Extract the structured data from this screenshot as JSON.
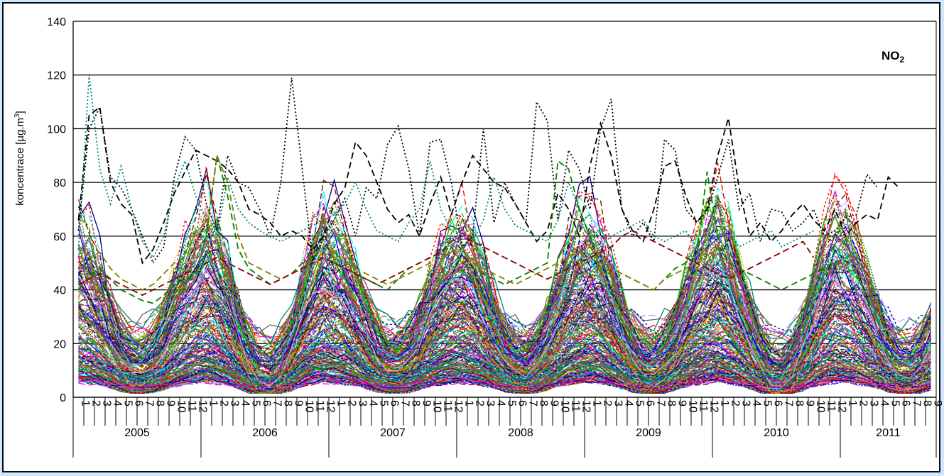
{
  "chart_data": {
    "type": "line",
    "title": "",
    "pollutant_label": "NO",
    "pollutant_sub": "2",
    "ylabel": "koncentrace [µg.m",
    "ylabel_sup": "3",
    "ylabel_end": "]",
    "xlabel": "",
    "ylim": [
      0,
      140
    ],
    "y_ticks": [
      0,
      20,
      40,
      60,
      80,
      100,
      120,
      140
    ],
    "grid": "horizontal",
    "legend": "none",
    "months": [
      "1",
      "2",
      "3",
      "4",
      "5",
      "6",
      "7",
      "8",
      "9",
      "10",
      "11",
      "12"
    ],
    "years": [
      {
        "label": "2005",
        "months": 12
      },
      {
        "label": "2006",
        "months": 12
      },
      {
        "label": "2007",
        "months": 12
      },
      {
        "label": "2008",
        "months": 12
      },
      {
        "label": "2009",
        "months": 12
      },
      {
        "label": "2010",
        "months": 12
      },
      {
        "label": "2011",
        "months": 9
      }
    ],
    "palette": [
      "#000080",
      "#ff00ff",
      "#00ffff",
      "#800000",
      "#008000",
      "#0000ff",
      "#ff0000",
      "#808000",
      "#008080",
      "#ff9900",
      "#993366",
      "#00cc00",
      "#cc99ff",
      "#333399",
      "#996633",
      "#666666"
    ],
    "series_count": 300,
    "highlight_series": [
      {
        "color": "#000000",
        "dash": "dotted",
        "values": [
          62,
          100,
          108,
          82,
          78,
          70,
          60,
          50,
          56,
          82,
          97,
          92,
          72,
          62,
          90,
          80,
          78,
          70,
          60,
          80,
          119,
          85,
          50,
          60,
          66,
          74,
          60,
          78,
          74,
          94,
          101,
          85,
          60,
          95,
          96,
          80,
          56,
          60,
          100,
          65,
          80,
          72,
          65,
          110,
          103,
          66,
          92,
          85,
          70,
          100,
          111,
          70,
          60,
          65,
          58,
          96,
          92,
          70,
          65,
          69,
          82,
          96,
          70,
          76,
          58,
          70,
          69,
          62,
          65,
          70,
          60,
          62,
          67,
          68,
          83,
          78
        ]
      },
      {
        "color": "#000000",
        "dash": "dashed",
        "values": [
          66,
          105,
          108,
          80,
          72,
          68,
          50,
          55,
          65,
          76,
          84,
          92,
          90,
          88,
          85,
          80,
          70,
          68,
          65,
          60,
          62,
          60,
          55,
          60,
          72,
          78,
          95,
          90,
          80,
          70,
          65,
          68,
          60,
          72,
          82,
          68,
          80,
          90,
          85,
          80,
          78,
          72,
          65,
          58,
          62,
          76,
          70,
          60,
          86,
          102,
          90,
          70,
          62,
          58,
          70,
          86,
          88,
          75,
          65,
          70,
          90,
          104,
          78,
          60,
          65,
          58,
          62,
          68,
          72,
          66,
          62,
          70,
          60,
          65,
          68,
          66,
          82,
          78
        ]
      },
      {
        "color": "#008080",
        "dash": "dotted",
        "values": [
          55,
          120,
          85,
          72,
          86,
          70,
          58,
          52,
          60,
          78,
          88,
          75,
          66,
          60,
          82,
          70,
          65,
          62,
          60,
          58,
          60,
          62,
          64,
          66,
          68,
          72,
          80,
          70,
          62,
          60,
          58,
          65,
          70,
          88,
          70,
          62,
          60,
          58,
          66,
          82,
          70,
          64,
          62,
          60,
          58,
          66,
          80,
          70,
          60,
          56,
          60,
          62,
          64,
          66,
          60,
          58,
          60,
          62,
          56,
          58,
          60,
          62,
          56,
          58,
          60,
          62,
          56,
          58,
          60,
          62
        ]
      },
      {
        "color": "#008000",
        "dash": "dashed",
        "values": [
          40,
          45,
          48,
          44,
          40,
          38,
          36,
          35,
          38,
          42,
          44,
          46,
          60,
          90,
          75,
          55,
          48,
          45,
          42,
          44,
          46,
          50,
          52,
          56,
          50,
          48,
          46,
          44,
          42,
          40,
          44,
          48,
          50,
          52,
          54,
          56,
          50,
          48,
          46,
          44,
          42,
          44,
          46,
          48,
          50,
          88,
          85,
          70,
          60,
          50,
          48,
          46,
          44,
          42,
          40,
          44,
          48,
          50,
          52,
          84,
          60,
          50,
          48,
          46,
          44,
          42,
          40,
          42,
          44,
          46,
          48,
          50,
          52,
          54
        ]
      },
      {
        "color": "#808000",
        "dash": "dashed",
        "values": [
          50,
          52,
          54,
          48,
          44,
          42,
          40,
          42,
          46,
          50,
          52,
          56,
          62,
          90,
          80,
          60,
          50,
          48,
          46,
          44,
          46,
          48,
          52,
          56,
          54,
          50,
          48,
          46,
          44,
          42,
          44,
          46,
          48,
          50,
          52,
          54,
          56,
          50,
          48,
          46,
          44,
          42,
          44,
          46,
          48,
          50,
          52,
          54,
          56,
          50,
          48,
          46,
          44,
          42,
          40,
          44,
          46,
          48,
          50,
          52
        ]
      },
      {
        "color": "#800000",
        "dash": "dashed",
        "values": [
          42,
          44,
          46,
          44,
          42,
          40,
          38,
          40,
          42,
          44,
          46,
          48,
          50,
          52,
          50,
          48,
          46,
          44,
          42,
          44,
          46,
          48,
          50,
          52,
          50,
          48,
          46,
          44,
          42,
          44,
          46,
          48,
          50,
          52,
          54,
          58,
          60,
          58,
          56,
          54,
          52,
          50,
          48,
          46,
          44,
          46,
          48,
          50,
          52,
          54,
          56,
          60,
          62,
          60,
          58,
          56,
          54,
          52,
          50,
          48,
          46,
          44,
          46,
          48,
          50,
          52,
          54,
          56,
          58,
          52
        ]
      }
    ]
  }
}
